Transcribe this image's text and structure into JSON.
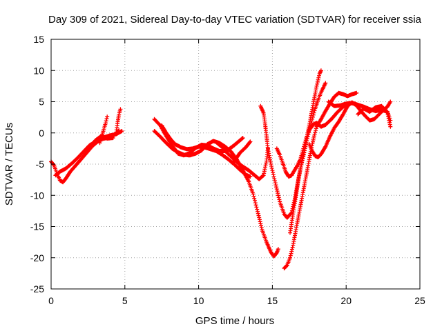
{
  "chart_data": {
    "type": "scatter",
    "title": "Day 309 of 2021, Sidereal Day-to-day VTEC variation (SDTVAR) for receiver ssia",
    "xlabel": "GPS time / hours",
    "ylabel": "SDTVAR / TECUs",
    "xlim": [
      0,
      25
    ],
    "ylim": [
      -25,
      15
    ],
    "xticks": [
      0,
      5,
      10,
      15,
      20,
      25
    ],
    "yticks": [
      -25,
      -20,
      -15,
      -10,
      -5,
      0,
      5,
      10,
      15
    ],
    "grid": true,
    "marker": "+",
    "series": [
      {
        "name": "",
        "color": "#ff0000",
        "tracks": [
          [
            [
              0.0,
              -4.6
            ],
            [
              0.2,
              -5.2
            ],
            [
              0.4,
              -6.5
            ],
            [
              0.6,
              -7.6
            ],
            [
              0.8,
              -7.9
            ],
            [
              1.0,
              -7.3
            ],
            [
              1.3,
              -6.2
            ],
            [
              1.6,
              -5.4
            ],
            [
              2.0,
              -4.3
            ],
            [
              2.4,
              -3.2
            ],
            [
              2.8,
              -2.1
            ],
            [
              3.2,
              -1.3
            ],
            [
              3.6,
              -0.7
            ],
            [
              4.0,
              -0.4
            ],
            [
              4.4,
              -0.2
            ],
            [
              4.8,
              0.3
            ]
          ],
          [
            [
              0.3,
              -6.8
            ],
            [
              0.6,
              -6.2
            ],
            [
              1.0,
              -5.7
            ],
            [
              1.4,
              -4.9
            ],
            [
              1.8,
              -4.0
            ],
            [
              2.2,
              -3.0
            ],
            [
              2.6,
              -2.0
            ],
            [
              3.0,
              -1.4
            ],
            [
              3.4,
              -1.0
            ],
            [
              3.8,
              -0.8
            ],
            [
              4.2,
              -0.5
            ],
            [
              4.6,
              0.4
            ]
          ],
          [
            [
              3.3,
              -1.6
            ],
            [
              3.5,
              0.0
            ],
            [
              3.7,
              1.6
            ],
            [
              3.8,
              2.6
            ]
          ],
          [
            [
              4.4,
              -0.2
            ],
            [
              4.5,
              1.5
            ],
            [
              4.6,
              3.0
            ],
            [
              4.7,
              3.8
            ]
          ],
          [
            [
              2.6,
              -2.4
            ],
            [
              3.0,
              -1.2
            ],
            [
              3.4,
              -0.5
            ],
            [
              3.8,
              -0.9
            ],
            [
              4.2,
              -0.8
            ]
          ],
          [
            [
              7.0,
              2.2
            ],
            [
              7.4,
              1.2
            ],
            [
              7.8,
              -0.5
            ],
            [
              8.2,
              -2.0
            ],
            [
              8.6,
              -3.3
            ],
            [
              9.0,
              -3.6
            ],
            [
              9.4,
              -3.2
            ],
            [
              9.8,
              -2.4
            ],
            [
              10.2,
              -1.9
            ],
            [
              10.6,
              -2.0
            ],
            [
              11.0,
              -2.5
            ],
            [
              11.4,
              -2.9
            ],
            [
              11.8,
              -2.9
            ],
            [
              12.2,
              -3.8
            ],
            [
              12.6,
              -4.7
            ],
            [
              13.0,
              -5.4
            ],
            [
              13.4,
              -6.0
            ],
            [
              13.8,
              -6.8
            ],
            [
              14.1,
              -7.4
            ],
            [
              14.4,
              -6.8
            ],
            [
              14.6,
              -4.5
            ],
            [
              14.7,
              -2.5
            ]
          ],
          [
            [
              7.0,
              0.3
            ],
            [
              7.4,
              -0.6
            ],
            [
              7.8,
              -1.6
            ],
            [
              8.2,
              -2.5
            ],
            [
              8.6,
              -3.1
            ],
            [
              9.0,
              -3.5
            ],
            [
              9.4,
              -3.6
            ],
            [
              9.8,
              -3.3
            ],
            [
              10.2,
              -2.8
            ],
            [
              10.6,
              -1.8
            ],
            [
              11.0,
              -1.3
            ],
            [
              11.4,
              -1.6
            ],
            [
              11.8,
              -2.2
            ],
            [
              12.2,
              -3.0
            ],
            [
              12.6,
              -4.3
            ],
            [
              13.0,
              -6.0
            ],
            [
              13.4,
              -7.8
            ],
            [
              13.7,
              -9.8
            ],
            [
              14.0,
              -12.6
            ],
            [
              14.3,
              -15.5
            ],
            [
              14.6,
              -17.5
            ],
            [
              14.9,
              -19.1
            ],
            [
              15.1,
              -19.8
            ],
            [
              15.3,
              -19.2
            ],
            [
              15.4,
              -18.6
            ]
          ],
          [
            [
              7.5,
              1.2
            ],
            [
              7.8,
              0.0
            ],
            [
              8.1,
              -1.0
            ],
            [
              8.4,
              -1.8
            ],
            [
              8.8,
              -2.3
            ],
            [
              9.2,
              -2.6
            ],
            [
              9.6,
              -2.5
            ],
            [
              10.0,
              -2.2
            ],
            [
              10.4,
              -2.3
            ],
            [
              10.8,
              -2.6
            ],
            [
              11.2,
              -2.9
            ],
            [
              11.6,
              -3.5
            ],
            [
              12.0,
              -4.2
            ],
            [
              12.4,
              -5.0
            ],
            [
              12.8,
              -5.9
            ],
            [
              13.2,
              -6.7
            ],
            [
              13.5,
              -7.0
            ]
          ],
          [
            [
              11.2,
              -1.5
            ],
            [
              11.6,
              -2.3
            ],
            [
              12.0,
              -2.7
            ],
            [
              12.4,
              -2.0
            ],
            [
              12.8,
              -1.2
            ],
            [
              13.0,
              -0.8
            ]
          ],
          [
            [
              12.4,
              -4.6
            ],
            [
              12.8,
              -3.2
            ],
            [
              13.2,
              -2.3
            ],
            [
              13.5,
              -1.4
            ]
          ],
          [
            [
              14.2,
              4.3
            ],
            [
              14.4,
              3.2
            ],
            [
              14.5,
              1.6
            ],
            [
              14.6,
              -0.5
            ],
            [
              14.7,
              -2.6
            ],
            [
              14.9,
              -5.0
            ],
            [
              15.2,
              -8.0
            ],
            [
              15.5,
              -11.0
            ],
            [
              15.8,
              -13.0
            ],
            [
              16.0,
              -13.6
            ],
            [
              16.3,
              -12.8
            ],
            [
              16.5,
              -10.8
            ],
            [
              16.7,
              -8.2
            ],
            [
              16.9,
              -5.8
            ],
            [
              17.1,
              -3.7
            ],
            [
              17.3,
              -1.6
            ],
            [
              17.5,
              0.4
            ],
            [
              17.7,
              2.2
            ],
            [
              17.9,
              3.9
            ],
            [
              18.1,
              5.3
            ],
            [
              18.3,
              6.5
            ],
            [
              18.5,
              7.5
            ],
            [
              18.6,
              8.0
            ]
          ],
          [
            [
              15.3,
              -2.5
            ],
            [
              15.5,
              -3.5
            ],
            [
              15.7,
              -4.8
            ],
            [
              15.9,
              -6.2
            ],
            [
              16.1,
              -7.0
            ],
            [
              16.3,
              -6.8
            ],
            [
              16.5,
              -6.0
            ],
            [
              16.7,
              -5.2
            ],
            [
              16.9,
              -4.2
            ],
            [
              17.1,
              -2.5
            ],
            [
              17.3,
              -0.8
            ],
            [
              17.5,
              0.5
            ],
            [
              17.8,
              1.4
            ],
            [
              18.0,
              1.6
            ],
            [
              18.3,
              1.0
            ],
            [
              18.6,
              1.3
            ],
            [
              19.0,
              2.2
            ],
            [
              19.4,
              3.3
            ],
            [
              19.8,
              4.2
            ],
            [
              20.2,
              4.8
            ],
            [
              20.6,
              4.7
            ]
          ],
          [
            [
              15.8,
              -21.7
            ],
            [
              16.0,
              -21.2
            ],
            [
              16.2,
              -20.0
            ],
            [
              16.4,
              -18.0
            ],
            [
              16.6,
              -15.5
            ],
            [
              16.8,
              -13.0
            ],
            [
              17.0,
              -10.5
            ],
            [
              17.2,
              -8.0
            ],
            [
              17.4,
              -5.5
            ],
            [
              17.6,
              -3.0
            ],
            [
              17.8,
              -0.8
            ],
            [
              18.0,
              1.0
            ],
            [
              18.3,
              2.2
            ],
            [
              18.6,
              3.5
            ],
            [
              18.9,
              4.7
            ],
            [
              19.2,
              5.8
            ],
            [
              19.5,
              6.4
            ],
            [
              19.8,
              6.2
            ],
            [
              20.1,
              5.9
            ],
            [
              20.4,
              6.2
            ],
            [
              20.7,
              6.4
            ]
          ],
          [
            [
              16.2,
              -16.0
            ],
            [
              16.4,
              -13.0
            ],
            [
              16.6,
              -10.0
            ],
            [
              16.8,
              -7.0
            ],
            [
              17.0,
              -4.5
            ],
            [
              17.2,
              -2.5
            ],
            [
              17.4,
              0.0
            ],
            [
              17.6,
              2.5
            ],
            [
              17.8,
              5.0
            ],
            [
              18.0,
              7.5
            ],
            [
              18.2,
              9.5
            ],
            [
              18.3,
              10.0
            ]
          ],
          [
            [
              17.5,
              -1.8
            ],
            [
              17.7,
              -2.9
            ],
            [
              17.9,
              -3.7
            ],
            [
              18.1,
              -3.9
            ],
            [
              18.3,
              -3.4
            ],
            [
              18.6,
              -2.2
            ],
            [
              18.9,
              -0.6
            ],
            [
              19.2,
              0.8
            ],
            [
              19.5,
              1.8
            ],
            [
              19.8,
              3.0
            ],
            [
              20.1,
              4.3
            ],
            [
              20.4,
              4.9
            ],
            [
              20.7,
              4.4
            ],
            [
              21.0,
              3.5
            ],
            [
              21.3,
              2.7
            ],
            [
              21.6,
              2.0
            ],
            [
              21.9,
              2.2
            ],
            [
              22.2,
              2.9
            ],
            [
              22.5,
              3.6
            ],
            [
              22.8,
              4.2
            ],
            [
              23.0,
              5.0
            ]
          ],
          [
            [
              18.8,
              5.0
            ],
            [
              19.2,
              4.3
            ],
            [
              19.6,
              4.4
            ],
            [
              20.0,
              4.7
            ],
            [
              20.4,
              4.8
            ],
            [
              20.8,
              4.5
            ],
            [
              21.2,
              4.2
            ],
            [
              21.6,
              3.8
            ],
            [
              22.0,
              3.5
            ],
            [
              22.4,
              3.7
            ],
            [
              22.8,
              3.4
            ],
            [
              23.0,
              2.0
            ]
          ],
          [
            [
              20.8,
              3.0
            ],
            [
              21.2,
              3.9
            ],
            [
              21.6,
              3.4
            ],
            [
              22.0,
              4.1
            ],
            [
              22.4,
              4.3
            ],
            [
              22.8,
              3.3
            ],
            [
              23.0,
              1.0
            ]
          ]
        ]
      }
    ]
  }
}
